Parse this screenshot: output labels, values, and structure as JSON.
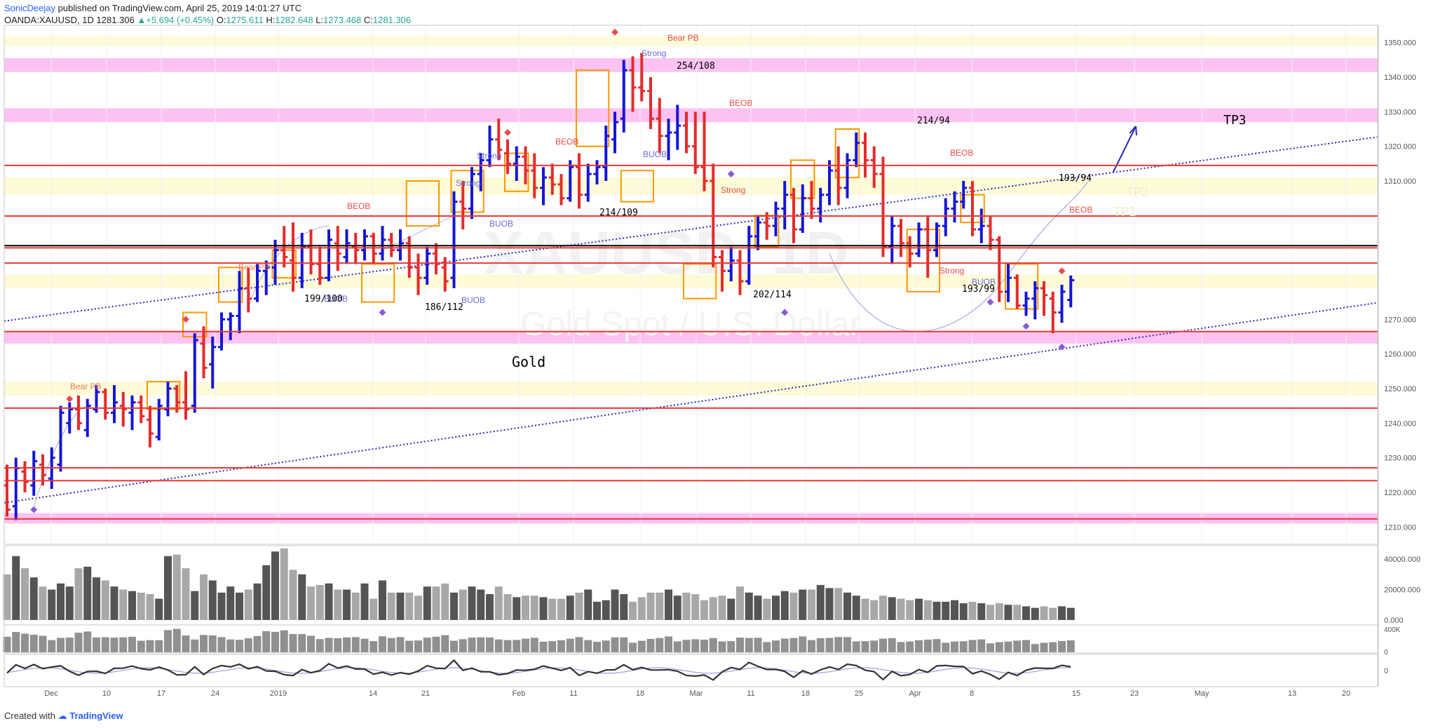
{
  "header": {
    "author": "SonicDeejay",
    "published": "published on TradingView.com, April 25, 2019 14:01:27 UTC",
    "symbol": "OANDA:XAUUSD, 1D",
    "last": "1281.306",
    "change": "+5.694 (+0.45%)",
    "o_label": "O:",
    "o": "1275.611",
    "h_label": "H:",
    "h": "1282.648",
    "l_label": "L:",
    "l": "1273.468",
    "c_label": "C:",
    "c": "1281.306"
  },
  "footer": {
    "created_with": "Created with",
    "brand": "TradingView"
  },
  "watermark": {
    "symbol": "XAUUSD, 1D",
    "name": "Gold Spot / U.S. Dollar"
  },
  "colors": {
    "bull": "#1515d8",
    "bear": "#e52b2b",
    "level": "#e53935",
    "zone_pink": "#fcc2f2",
    "zone_yellow": "#fdfbd8",
    "trend": "#2a2ab8",
    "order_block": "#ff9800"
  },
  "chart_data": {
    "type": "bar",
    "price_axis": {
      "min": 1205,
      "max": 1355,
      "ticks": [
        1210,
        1220,
        1230,
        1240,
        1250,
        1260,
        1270,
        1280,
        1290,
        1300,
        1310,
        1320,
        1330,
        1340,
        1350
      ]
    },
    "x_ticks": [
      "Dec",
      "10",
      "17",
      "24",
      "2019",
      "14",
      "21",
      "Feb",
      "11",
      "18",
      "Mar",
      "11",
      "18",
      "25",
      "Apr",
      "8",
      "15",
      "23",
      "May",
      "13",
      "20"
    ],
    "ohlc": [
      [
        1222,
        1228,
        1213,
        1215
      ],
      [
        1216,
        1230,
        1212,
        1227
      ],
      [
        1226,
        1229,
        1220,
        1223
      ],
      [
        1222,
        1232,
        1219,
        1229
      ],
      [
        1228,
        1231,
        1222,
        1225
      ],
      [
        1224,
        1233,
        1221,
        1230
      ],
      [
        1228,
        1245,
        1226,
        1243
      ],
      [
        1240,
        1246,
        1237,
        1244
      ],
      [
        1244,
        1248,
        1238,
        1240
      ],
      [
        1238,
        1247,
        1236,
        1245
      ],
      [
        1244,
        1251,
        1243,
        1249
      ],
      [
        1249,
        1250,
        1241,
        1243
      ],
      [
        1243,
        1251,
        1240,
        1246
      ],
      [
        1245,
        1249,
        1239,
        1244
      ],
      [
        1243,
        1248,
        1238,
        1246
      ],
      [
        1246,
        1248,
        1240,
        1242
      ],
      [
        1241,
        1245,
        1233,
        1237
      ],
      [
        1236,
        1247,
        1235,
        1245
      ],
      [
        1244,
        1252,
        1242,
        1250
      ],
      [
        1250,
        1251,
        1243,
        1246
      ],
      [
        1246,
        1255,
        1241,
        1244
      ],
      [
        1245,
        1266,
        1243,
        1264
      ],
      [
        1263,
        1268,
        1253,
        1256
      ],
      [
        1257,
        1265,
        1250,
        1262
      ],
      [
        1262,
        1272,
        1261,
        1270
      ],
      [
        1270,
        1272,
        1264,
        1271
      ],
      [
        1271,
        1284,
        1266,
        1279
      ],
      [
        1279,
        1285,
        1272,
        1276
      ],
      [
        1276,
        1286,
        1275,
        1284
      ],
      [
        1284,
        1287,
        1277,
        1285
      ],
      [
        1285,
        1293,
        1280,
        1290
      ],
      [
        1290,
        1297,
        1285,
        1288
      ],
      [
        1287,
        1298,
        1278,
        1282
      ],
      [
        1282,
        1295,
        1279,
        1291
      ],
      [
        1291,
        1296,
        1283,
        1286
      ],
      [
        1286,
        1291,
        1280,
        1282
      ],
      [
        1282,
        1296,
        1281,
        1293
      ],
      [
        1292,
        1297,
        1284,
        1289
      ],
      [
        1288,
        1296,
        1286,
        1292
      ],
      [
        1291,
        1295,
        1286,
        1290
      ],
      [
        1290,
        1296,
        1287,
        1294
      ],
      [
        1294,
        1295,
        1286,
        1289
      ],
      [
        1289,
        1297,
        1287,
        1293
      ],
      [
        1293,
        1295,
        1288,
        1290
      ],
      [
        1290,
        1296,
        1287,
        1292
      ],
      [
        1292,
        1294,
        1282,
        1285
      ],
      [
        1285,
        1289,
        1277,
        1282
      ],
      [
        1282,
        1291,
        1280,
        1289
      ],
      [
        1289,
        1292,
        1283,
        1286
      ],
      [
        1285,
        1288,
        1278,
        1281
      ],
      [
        1282,
        1307,
        1279,
        1304
      ],
      [
        1304,
        1310,
        1296,
        1302
      ],
      [
        1302,
        1314,
        1299,
        1312
      ],
      [
        1312,
        1318,
        1307,
        1316
      ],
      [
        1316,
        1326,
        1314,
        1322
      ],
      [
        1322,
        1328,
        1316,
        1319
      ],
      [
        1318,
        1322,
        1312,
        1315
      ],
      [
        1315,
        1320,
        1310,
        1317
      ],
      [
        1317,
        1320,
        1309,
        1313
      ],
      [
        1313,
        1318,
        1305,
        1308
      ],
      [
        1308,
        1314,
        1303,
        1311
      ],
      [
        1311,
        1315,
        1306,
        1309
      ],
      [
        1309,
        1312,
        1303,
        1305
      ],
      [
        1305,
        1316,
        1304,
        1314
      ],
      [
        1314,
        1318,
        1302,
        1306
      ],
      [
        1306,
        1315,
        1304,
        1312
      ],
      [
        1312,
        1316,
        1309,
        1314
      ],
      [
        1314,
        1326,
        1310,
        1323
      ],
      [
        1322,
        1330,
        1318,
        1327
      ],
      [
        1328,
        1345,
        1324,
        1342
      ],
      [
        1342,
        1346,
        1330,
        1337
      ],
      [
        1337,
        1347,
        1333,
        1336
      ],
      [
        1336,
        1340,
        1325,
        1328
      ],
      [
        1328,
        1334,
        1318,
        1323
      ],
      [
        1323,
        1328,
        1316,
        1324
      ],
      [
        1324,
        1332,
        1319,
        1326
      ],
      [
        1326,
        1330,
        1318,
        1320
      ],
      [
        1320,
        1330,
        1312,
        1314
      ],
      [
        1314,
        1330,
        1307,
        1310
      ],
      [
        1310,
        1315,
        1285,
        1288
      ],
      [
        1288,
        1290,
        1278,
        1284
      ],
      [
        1284,
        1291,
        1281,
        1287
      ],
      [
        1287,
        1290,
        1277,
        1281
      ],
      [
        1281,
        1297,
        1280,
        1294
      ],
      [
        1294,
        1300,
        1290,
        1298
      ],
      [
        1298,
        1301,
        1293,
        1297
      ],
      [
        1297,
        1304,
        1294,
        1302
      ],
      [
        1302,
        1310,
        1296,
        1306
      ],
      [
        1306,
        1308,
        1292,
        1296
      ],
      [
        1296,
        1309,
        1295,
        1305
      ],
      [
        1305,
        1310,
        1299,
        1302
      ],
      [
        1302,
        1308,
        1298,
        1306
      ],
      [
        1306,
        1316,
        1303,
        1313
      ],
      [
        1313,
        1320,
        1303,
        1308
      ],
      [
        1308,
        1318,
        1305,
        1316
      ],
      [
        1316,
        1324,
        1314,
        1321
      ],
      [
        1321,
        1324,
        1311,
        1316
      ],
      [
        1316,
        1320,
        1308,
        1312
      ],
      [
        1312,
        1317,
        1288,
        1291
      ],
      [
        1291,
        1300,
        1286,
        1297
      ],
      [
        1297,
        1299,
        1288,
        1292
      ],
      [
        1292,
        1294,
        1285,
        1289
      ],
      [
        1289,
        1298,
        1288,
        1296
      ],
      [
        1296,
        1300,
        1282,
        1290
      ],
      [
        1290,
        1298,
        1288,
        1297
      ],
      [
        1297,
        1305,
        1294,
        1302
      ],
      [
        1302,
        1307,
        1298,
        1304
      ],
      [
        1304,
        1310,
        1302,
        1308
      ],
      [
        1308,
        1310,
        1294,
        1296
      ],
      [
        1296,
        1302,
        1292,
        1297
      ],
      [
        1297,
        1300,
        1290,
        1293
      ],
      [
        1293,
        1294,
        1275,
        1278
      ],
      [
        1278,
        1286,
        1275,
        1282
      ],
      [
        1282,
        1283,
        1273,
        1274
      ],
      [
        1274,
        1278,
        1271,
        1276
      ],
      [
        1276,
        1281,
        1270,
        1279
      ],
      [
        1279,
        1281,
        1271,
        1277
      ],
      [
        1276,
        1278,
        1266,
        1272
      ],
      [
        1272,
        1280,
        1269,
        1278
      ],
      [
        1275.611,
        1282.648,
        1273.468,
        1281.306
      ]
    ],
    "volume": [
      "volume panel values estimated from bar heights",
      30000,
      42000,
      34000,
      28000,
      22000,
      20000,
      24000,
      22000,
      34000,
      35000,
      28000,
      26000,
      22000,
      20000,
      19000,
      18000,
      17000,
      14000,
      42000,
      43000,
      34000,
      19000,
      30000,
      26000,
      18000,
      22000,
      18000,
      20000,
      24000,
      36000,
      45000,
      47000,
      33000,
      30000,
      22000,
      23000,
      24000,
      20000,
      20000,
      18000,
      24000,
      14000,
      26000,
      18000,
      18000,
      18000,
      16000,
      22000,
      22000,
      24000,
      18000,
      20000,
      22000,
      20000,
      17000,
      22000,
      17000,
      15000,
      16000,
      16000,
      15000,
      14000,
      14000,
      16000,
      18000,
      20000,
      12000,
      13000,
      20000,
      17000,
      12000,
      15000,
      18000,
      18000,
      20000,
      16000,
      18000,
      17000,
      13000,
      15000,
      16000,
      14000,
      22000,
      18000,
      16000,
      14000,
      16000,
      19000,
      18000,
      20000,
      20000,
      23000,
      21000,
      21000,
      18000,
      16000,
      14000,
      13000,
      16000,
      15000,
      14000,
      13000,
      14000,
      13000,
      12000,
      12000,
      13000,
      11000,
      12000,
      11000,
      10000,
      11000,
      10000,
      10000,
      9000,
      8000,
      9000,
      8000,
      9000,
      8000
    ],
    "volume_axis": {
      "ticks": [
        "40000.000",
        "20000.000",
        "0.000"
      ]
    },
    "osc_axis": {
      "ticks": [
        "400K",
        "0"
      ]
    },
    "osc2_axis": {
      "ticks": [
        "0"
      ]
    },
    "levels": [
      "1314.476",
      "1299.859",
      "1291.300",
      "1290.671",
      "1286.271",
      "1281.306",
      "1266.476",
      "1244.351",
      "1227.093",
      "1223.370",
      "1212.327"
    ],
    "annotations": {
      "labels": [
        "Bear PB",
        "Bear PB",
        "Bear PB",
        "BEOB",
        "BEOB",
        "BEOB",
        "BEOB",
        "BEOB",
        "Strong",
        "Strong",
        "Strong",
        "Strong",
        "Strong",
        "BUOB",
        "BUOB",
        "BUOB",
        "BUOB",
        "BUOB",
        "254/108",
        "214/109",
        "214/94",
        "199/100",
        "186/112",
        "202/114",
        "193/99",
        "193/94",
        "TP1",
        "TP2",
        "TP3",
        "Gold"
      ]
    }
  }
}
